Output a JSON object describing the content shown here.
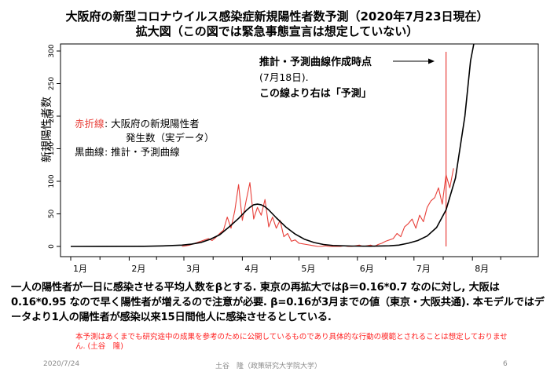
{
  "slide": {
    "title_line1": "大阪府の新型コロナウイルス感染症新規陽性者数予測（2020年7月23日現在）",
    "title_line2": "拡大図（この図では緊急事態宣言は想定していない）",
    "description": "一人の陽性者が一日に感染させる平均人数をβとする. 東京の再拡大ではβ＝0.16*0.7 なのに対し, 大阪は0.16*0.95 なので早く陽性者が増えるので注意が必要. β=0.16が3月までの値（東京・大阪共通). 本モデルではデータより1人の陽性者が感染以来15日間他人に感染させるとしている.",
    "disclaimer": "本予測はあくまでも研究途中の成果を参考のために公開しているものであり具体的な行動の模範とされることは想定しておりません. (土谷　隆)",
    "footer_date": "2020/7/24",
    "footer_author": "土谷　隆（政策研究大学院大学）",
    "footer_page": "6"
  },
  "chart_data": {
    "type": "line",
    "ylabel": "新規陽性者数",
    "ylim": [
      0,
      300
    ],
    "yticks": [
      0,
      50,
      100,
      150,
      200,
      250,
      300
    ],
    "month_ticks": [
      "1月",
      "2月",
      "3月",
      "4月",
      "5月",
      "6月",
      "7月",
      "8月"
    ],
    "x_unit": "day of year 2020 (1 = Jan 1)",
    "series": [
      {
        "name": "赤折線",
        "color": "#e8403a",
        "x": [
          60,
          62,
          64,
          66,
          68,
          70,
          72,
          74,
          76,
          78,
          80,
          82,
          84,
          86,
          88,
          90,
          92,
          94,
          96,
          98,
          100,
          102,
          104,
          106,
          108,
          110,
          112,
          114,
          116,
          118,
          120,
          122,
          124,
          126,
          128,
          130,
          132,
          134,
          136,
          138,
          140,
          142,
          144,
          146,
          148,
          150,
          152,
          154,
          156,
          158,
          160,
          162,
          164,
          166,
          168,
          170,
          172,
          174,
          176,
          178,
          180,
          182,
          184,
          186,
          188,
          190,
          192,
          194,
          196,
          198,
          200,
          202,
          204
        ],
        "values": [
          0,
          1,
          2,
          4,
          6,
          8,
          10,
          12,
          9,
          14,
          20,
          25,
          45,
          28,
          55,
          95,
          40,
          70,
          98,
          42,
          60,
          48,
          72,
          30,
          45,
          28,
          40,
          15,
          20,
          8,
          10,
          5,
          4,
          3,
          2,
          1,
          0,
          0,
          1,
          0,
          0,
          0,
          0,
          1,
          0,
          0,
          1,
          2,
          0,
          1,
          2,
          0,
          3,
          5,
          8,
          10,
          12,
          20,
          15,
          30,
          35,
          42,
          28,
          48,
          38,
          60,
          70,
          75,
          90,
          65,
          110,
          90,
          120
        ]
      },
      {
        "name": "黒曲線",
        "color": "#000000",
        "x": [
          1,
          40,
          50,
          60,
          65,
          70,
          75,
          80,
          85,
          90,
          92,
          94,
          96,
          98,
          100,
          102,
          104,
          106,
          108,
          110,
          115,
          120,
          125,
          130,
          135,
          140,
          150,
          160,
          170,
          175,
          180,
          185,
          190,
          195,
          200,
          205,
          210,
          213,
          216
        ],
        "values": [
          0,
          0.3,
          0.8,
          2,
          3.5,
          6,
          11,
          18,
          30,
          43,
          49,
          55,
          60,
          64,
          65,
          64,
          61,
          56,
          50,
          44,
          30,
          19,
          11,
          6,
          3,
          1.5,
          0.6,
          0.4,
          1,
          2,
          5,
          9,
          16,
          29,
          56,
          105,
          200,
          285,
          330
        ]
      }
    ],
    "event_line": {
      "x": 200,
      "color": "#e8403a"
    },
    "annotations": {
      "legend_red_label": "赤折線",
      "legend_red_text1": ": 大阪府の新規陽性者",
      "legend_red_text2": "発生数（実データ）",
      "legend_black_label": "黒曲線",
      "legend_black_text": ": 推計・予測曲線",
      "arrow_line1": "推計・予測曲線作成時点",
      "arrow_line2": "(7月18日).",
      "arrow_line3": "この線より右は「予測」"
    },
    "colors": {
      "red": "#e8403a",
      "black": "#000000",
      "axis": "#000000"
    }
  }
}
